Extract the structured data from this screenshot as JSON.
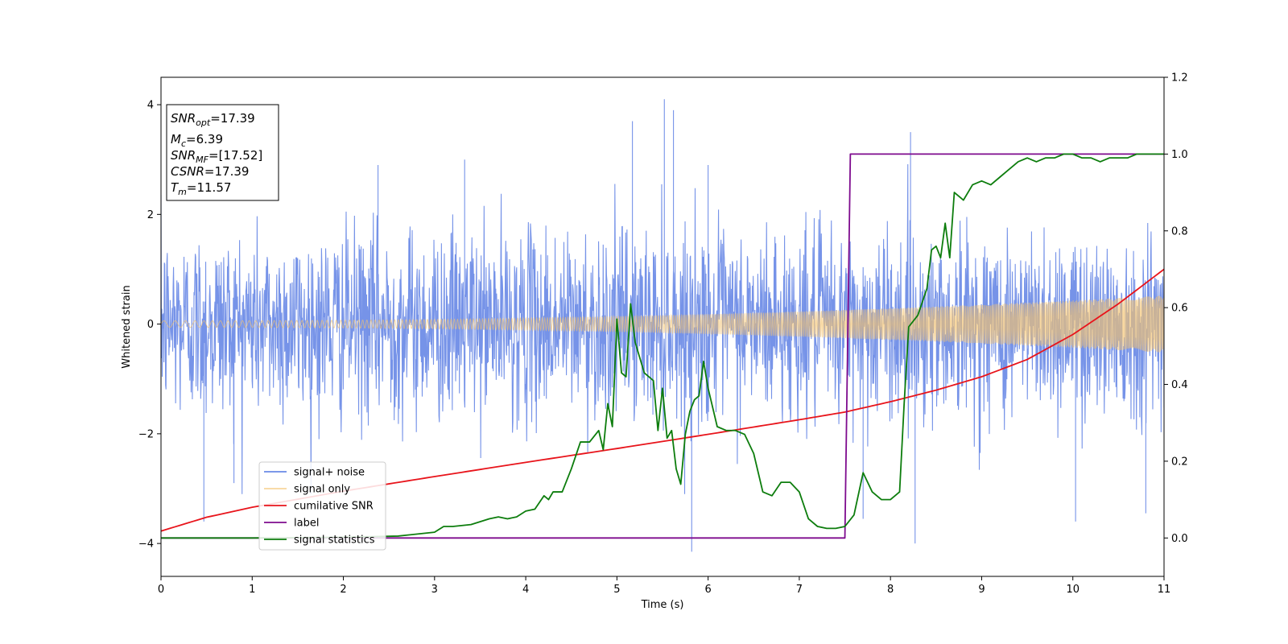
{
  "chart_data": {
    "type": "line",
    "xlabel": "Time (s)",
    "ylabel": "Whitened strain",
    "xlim": [
      0,
      11
    ],
    "ylim": [
      -4.6,
      4.5
    ],
    "y2lim": [
      -0.1,
      1.2
    ],
    "xticks": [
      "0",
      "1",
      "2",
      "3",
      "4",
      "5",
      "6",
      "7",
      "8",
      "9",
      "10",
      "11"
    ],
    "yticks": [
      {
        "value": -4,
        "label": "−4"
      },
      {
        "value": -2,
        "label": "−2"
      },
      {
        "value": 0,
        "label": "0"
      },
      {
        "value": 2,
        "label": "2"
      },
      {
        "value": 4,
        "label": "4"
      }
    ],
    "y2ticks": [
      "0.0",
      "0.2",
      "0.4",
      "0.6",
      "0.8",
      "1.0",
      "1.2"
    ],
    "legend_position": "lower-left",
    "grid": false,
    "series": [
      {
        "name": "signal+ noise",
        "color": "#6a8ae6",
        "axis": "left",
        "noise_sigma": 0.85,
        "spikes": [
          [
            0.47,
            -3.6
          ],
          [
            0.8,
            -2.9
          ],
          [
            5.17,
            3.7
          ],
          [
            5.52,
            4.1
          ],
          [
            5.62,
            3.9
          ],
          [
            5.82,
            -4.15
          ],
          [
            6.0,
            2.9
          ],
          [
            7.7,
            -3.55
          ],
          [
            8.22,
            3.5
          ],
          [
            8.27,
            -4.0
          ],
          [
            10.03,
            -3.6
          ],
          [
            10.8,
            -3.45
          ],
          [
            3.33,
            3.0
          ],
          [
            2.38,
            2.9
          ]
        ]
      },
      {
        "name": "signal only",
        "color": "#f5c36e",
        "axis": "left",
        "amplitude_start": 0.06,
        "amplitude_end": 0.52
      },
      {
        "name": "cumilative SNR",
        "color": "#e8141b",
        "axis": "right",
        "x": [
          0,
          0.5,
          1,
          2,
          3,
          4,
          5,
          6,
          7,
          7.5,
          8,
          8.5,
          9,
          9.5,
          10,
          10.5,
          11
        ],
        "y": [
          0.018,
          0.054,
          0.08,
          0.122,
          0.16,
          0.197,
          0.233,
          0.27,
          0.308,
          0.328,
          0.355,
          0.385,
          0.42,
          0.465,
          0.53,
          0.61,
          0.7
        ]
      },
      {
        "name": "label",
        "color": "#7e0b8e",
        "axis": "right",
        "x": [
          0,
          7.5,
          7.56,
          11
        ],
        "y": [
          0,
          0,
          1,
          1
        ]
      },
      {
        "name": "signal statistics",
        "color": "#0d7d0d",
        "axis": "right",
        "x": [
          0,
          1,
          2,
          2.6,
          3.0,
          3.1,
          3.2,
          3.4,
          3.6,
          3.7,
          3.8,
          3.9,
          4.0,
          4.1,
          4.2,
          4.25,
          4.3,
          4.4,
          4.5,
          4.6,
          4.7,
          4.8,
          4.85,
          4.9,
          4.95,
          5.0,
          5.05,
          5.1,
          5.15,
          5.2,
          5.3,
          5.4,
          5.45,
          5.5,
          5.55,
          5.6,
          5.65,
          5.7,
          5.75,
          5.8,
          5.85,
          5.9,
          5.95,
          6.0,
          6.1,
          6.2,
          6.3,
          6.4,
          6.5,
          6.6,
          6.7,
          6.8,
          6.9,
          7.0,
          7.1,
          7.2,
          7.3,
          7.4,
          7.5,
          7.6,
          7.7,
          7.8,
          7.9,
          8.0,
          8.1,
          8.15,
          8.2,
          8.3,
          8.4,
          8.45,
          8.5,
          8.55,
          8.6,
          8.65,
          8.7,
          8.8,
          8.9,
          9.0,
          9.1,
          9.2,
          9.3,
          9.4,
          9.5,
          9.6,
          9.7,
          9.8,
          9.9,
          10.0,
          10.1,
          10.2,
          10.3,
          10.4,
          10.5,
          10.6,
          10.7,
          10.8,
          10.9,
          11.0
        ],
        "y": [
          0.0,
          0.0,
          0.002,
          0.005,
          0.015,
          0.03,
          0.03,
          0.035,
          0.05,
          0.055,
          0.05,
          0.055,
          0.07,
          0.075,
          0.11,
          0.1,
          0.12,
          0.12,
          0.18,
          0.25,
          0.25,
          0.28,
          0.23,
          0.35,
          0.29,
          0.57,
          0.43,
          0.42,
          0.61,
          0.51,
          0.43,
          0.41,
          0.28,
          0.39,
          0.26,
          0.28,
          0.18,
          0.14,
          0.27,
          0.33,
          0.36,
          0.37,
          0.46,
          0.39,
          0.29,
          0.28,
          0.28,
          0.27,
          0.22,
          0.12,
          0.11,
          0.145,
          0.145,
          0.12,
          0.05,
          0.03,
          0.025,
          0.025,
          0.03,
          0.06,
          0.17,
          0.12,
          0.1,
          0.1,
          0.12,
          0.35,
          0.55,
          0.58,
          0.65,
          0.75,
          0.76,
          0.73,
          0.82,
          0.73,
          0.9,
          0.88,
          0.92,
          0.93,
          0.92,
          0.94,
          0.96,
          0.98,
          0.99,
          0.98,
          0.99,
          0.99,
          1.0,
          1.0,
          0.99,
          0.99,
          0.98,
          0.99,
          0.99,
          0.99,
          1.0,
          1.0,
          1.0,
          1.0
        ]
      }
    ]
  },
  "info_box": {
    "lines": [
      {
        "main": "SNR",
        "sub": "opt",
        "value": "=17.39"
      },
      {
        "main": "M",
        "sub": "c",
        "value": "=6.39"
      },
      {
        "main": "SNR",
        "sub": "MF",
        "value": "=[17.52]"
      },
      {
        "main": "CSNR",
        "sub": "",
        "value": "=17.39"
      },
      {
        "main": "T",
        "sub": "m",
        "value": "=11.57"
      }
    ]
  }
}
